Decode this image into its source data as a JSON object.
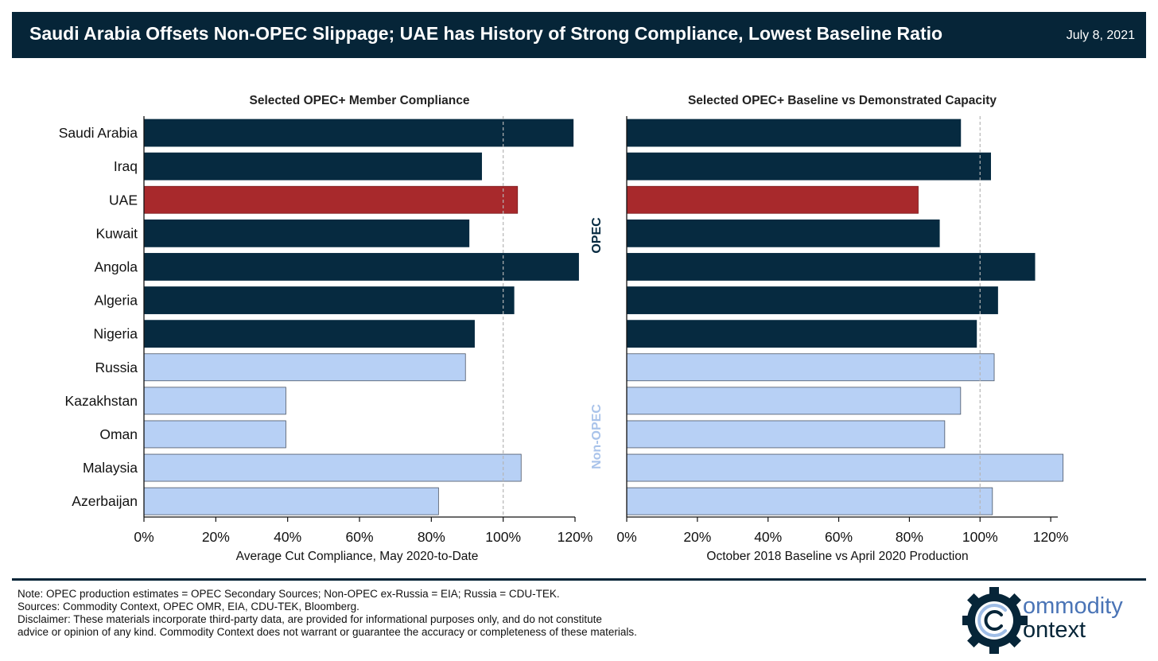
{
  "header": {
    "title": "Saudi Arabia Offsets Non-OPEC Slippage; UAE has History of Strong Compliance, Lowest Baseline Ratio",
    "date": "July 8, 2021"
  },
  "colors": {
    "header_bg": "#062538",
    "opec": "#062a40",
    "uae": "#a8292c",
    "non_opec": "#b7d0f5",
    "non_opec_label": "#a9c3ea",
    "reference_line": "#b5b5b5"
  },
  "group_labels": {
    "opec": "OPEC",
    "non_opec": "Non-OPEC"
  },
  "chart_data": [
    {
      "type": "bar",
      "orientation": "horizontal",
      "title": "Selected OPEC+ Member Compliance",
      "xlabel": "Average Cut Compliance, May 2020-to-Date",
      "ylabel": "",
      "xlim": [
        0,
        1.2
      ],
      "ticks": [
        0,
        0.2,
        0.4,
        0.6,
        0.8,
        1.0,
        1.2
      ],
      "tick_labels": [
        "0%",
        "20%",
        "40%",
        "60%",
        "80%",
        "100%",
        "120%"
      ],
      "reference_line": 1.0,
      "categories": [
        "Saudi Arabia",
        "Iraq",
        "UAE",
        "Kuwait",
        "Angola",
        "Algeria",
        "Nigeria",
        "Russia",
        "Kazakhstan",
        "Oman",
        "Malaysia",
        "Azerbaijan"
      ],
      "groups": [
        "opec",
        "opec",
        "uae",
        "opec",
        "opec",
        "opec",
        "opec",
        "non_opec",
        "non_opec",
        "non_opec",
        "non_opec",
        "non_opec"
      ],
      "values": [
        1.195,
        0.94,
        1.04,
        0.905,
        1.21,
        1.03,
        0.92,
        0.895,
        0.395,
        0.395,
        1.05,
        0.82
      ]
    },
    {
      "type": "bar",
      "orientation": "horizontal",
      "title": "Selected OPEC+ Baseline vs Demonstrated Capacity",
      "xlabel": "October 2018 Baseline vs April 2020 Production",
      "ylabel": "",
      "xlim": [
        0,
        1.22
      ],
      "ticks": [
        0,
        0.2,
        0.4,
        0.6,
        0.8,
        1.0,
        1.2
      ],
      "tick_labels": [
        "0%",
        "20%",
        "40%",
        "60%",
        "80%",
        "100%",
        "120%"
      ],
      "reference_line": 1.0,
      "categories": [
        "Saudi Arabia",
        "Iraq",
        "UAE",
        "Kuwait",
        "Angola",
        "Algeria",
        "Nigeria",
        "Russia",
        "Kazakhstan",
        "Oman",
        "Malaysia",
        "Azerbaijan"
      ],
      "groups": [
        "opec",
        "opec",
        "uae",
        "opec",
        "opec",
        "opec",
        "opec",
        "non_opec",
        "non_opec",
        "non_opec",
        "non_opec",
        "non_opec"
      ],
      "values": [
        0.945,
        1.03,
        0.825,
        0.885,
        1.155,
        1.05,
        0.99,
        1.04,
        0.945,
        0.9,
        1.235,
        1.035
      ]
    }
  ],
  "footer": {
    "note": "Note: OPEC production estimates = OPEC Secondary Sources; Non-OPEC ex-Russia = EIA; Russia = CDU-TEK.",
    "sources": "Sources: Commodity Context, OPEC OMR, EIA, CDU-TEK, Bloomberg.",
    "disclaimer_line1": "Disclaimer: These materials incorporate third-party data, are provided for informational purposes only, and do not constitute",
    "disclaimer_line2": "advice or opinion of any kind. Commodity Context does not warrant or guarantee the accuracy or completeness of these materials."
  },
  "logo": {
    "word1": "ommodity",
    "word2": "ontext"
  }
}
